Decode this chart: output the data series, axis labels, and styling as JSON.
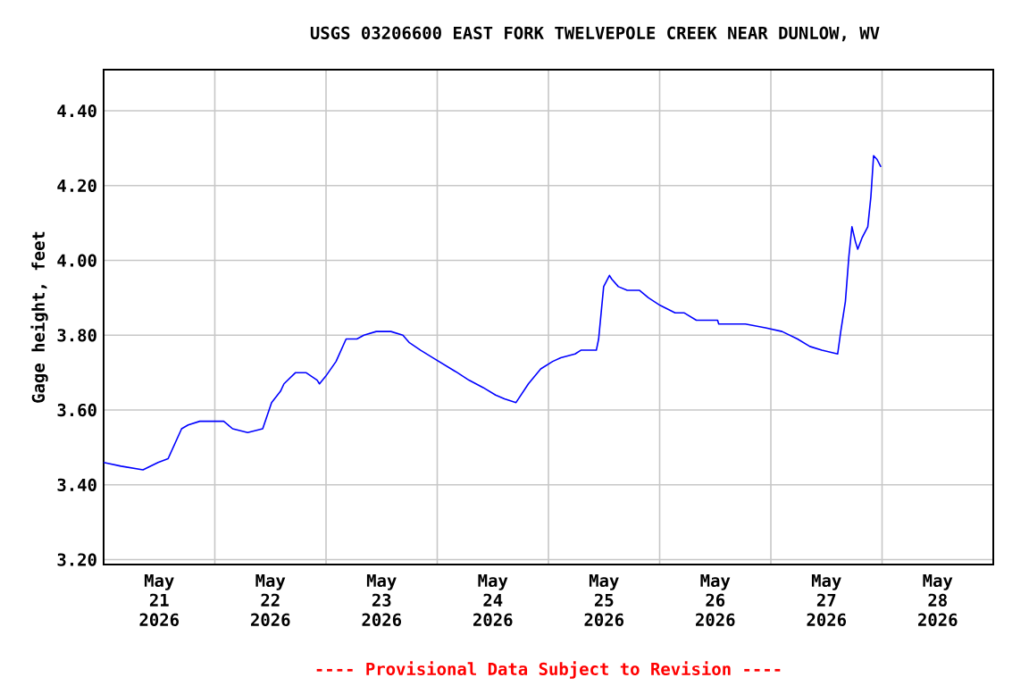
{
  "chart_data": {
    "type": "line",
    "title": "USGS 03206600 EAST FORK TWELVEPOLE CREEK NEAR DUNLOW, WV",
    "ylabel": "Gage height, feet",
    "annotations": [
      "---- Provisional Data Subject to Revision ----"
    ],
    "xlim": [
      "2026-05-21",
      "2026-05-29"
    ],
    "xticks": [
      {
        "value": "2026-05-21",
        "label": null
      },
      {
        "value": "2026-05-22",
        "label": null
      },
      {
        "value": "2026-05-23",
        "label": null
      },
      {
        "value": "2026-05-24",
        "label": null
      },
      {
        "value": "2026-05-25",
        "label": null
      },
      {
        "value": "2026-05-26",
        "label": null
      },
      {
        "value": "2026-05-27",
        "label": null
      },
      {
        "value": "2026-05-28",
        "label": null
      },
      {
        "value": "2026-05-29",
        "label": null
      },
      {
        "value": "2026-05-21T12:00",
        "label": "May 21 2026"
      },
      {
        "value": "2026-05-22T12:00",
        "label": "May 22 2026"
      },
      {
        "value": "2026-05-23T12:00",
        "label": "May 23 2026"
      },
      {
        "value": "2026-05-24T12:00",
        "label": "May 24 2026"
      },
      {
        "value": "2026-05-25T12:00",
        "label": "May 25 2026"
      },
      {
        "value": "2026-05-26T12:00",
        "label": "May 26 2026"
      },
      {
        "value": "2026-05-27T12:00",
        "label": "May 27 2026"
      },
      {
        "value": "2026-05-28T12:00",
        "label": "May 28 2026"
      }
    ],
    "ylim": [
      3.187,
      4.51
    ],
    "yticks": [
      {
        "value": 3.2,
        "label": "3.20"
      },
      {
        "value": 3.4,
        "label": "3.40"
      },
      {
        "value": 3.6,
        "label": "3.60"
      },
      {
        "value": 3.8,
        "label": "3.80"
      },
      {
        "value": 4.0,
        "label": "4.00"
      },
      {
        "value": 4.2,
        "label": "4.20"
      },
      {
        "value": 4.4,
        "label": "4.40"
      }
    ],
    "grid": true,
    "marker": "none",
    "line_style": "solid",
    "series": [
      {
        "color": "#0000ff",
        "x": [
          "2026-05-21T00:00",
          "2026-05-21T03:45",
          "2026-05-21T08:30",
          "2026-05-21T11:45",
          "2026-05-21T13:55",
          "2026-05-21T16:50",
          "2026-05-21T18:15",
          "2026-05-21T20:45",
          "2026-05-22T01:55",
          "2026-05-22T03:50",
          "2026-05-22T07:05",
          "2026-05-22T10:20",
          "2026-05-22T12:15",
          "2026-05-22T14:10",
          "2026-05-22T14:55",
          "2026-05-22T17:25",
          "2026-05-22T19:40",
          "2026-05-22T22:05",
          "2026-05-22T22:35",
          "2026-05-22T23:55",
          "2026-05-23T02:10",
          "2026-05-23T04:20",
          "2026-05-23T06:40",
          "2026-05-23T08:10",
          "2026-05-23T10:50",
          "2026-05-23T14:00",
          "2026-05-23T16:35",
          "2026-05-23T18:00",
          "2026-05-23T20:25",
          "2026-05-23T23:00",
          "2026-05-24T01:40",
          "2026-05-24T04:20",
          "2026-05-24T06:50",
          "2026-05-24T09:55",
          "2026-05-24T12:35",
          "2026-05-24T14:30",
          "2026-05-24T17:00",
          "2026-05-24T19:40",
          "2026-05-24T22:20",
          "2026-05-25T00:55",
          "2026-05-25T02:40",
          "2026-05-25T05:45",
          "2026-05-25T07:00",
          "2026-05-25T10:20",
          "2026-05-25T10:50",
          "2026-05-25T11:55",
          "2026-05-25T13:10",
          "2026-05-25T13:40",
          "2026-05-25T15:05",
          "2026-05-25T17:00",
          "2026-05-25T19:40",
          "2026-05-25T21:35",
          "2026-05-26T00:05",
          "2026-05-26T03:20",
          "2026-05-26T05:15",
          "2026-05-26T07:55",
          "2026-05-26T12:30",
          "2026-05-26T12:45",
          "2026-05-26T18:30",
          "2026-05-26T22:50",
          "2026-05-27T02:25",
          "2026-05-27T05:45",
          "2026-05-27T08:25",
          "2026-05-27T11:00",
          "2026-05-27T14:25",
          "2026-05-27T15:05",
          "2026-05-27T16:05",
          "2026-05-27T16:50",
          "2026-05-27T17:30",
          "2026-05-27T18:15",
          "2026-05-27T18:45",
          "2026-05-27T19:40",
          "2026-05-27T20:55",
          "2026-05-27T21:35",
          "2026-05-27T22:10",
          "2026-05-27T22:55",
          "2026-05-27T23:45"
        ],
        "values": [
          3.46,
          3.45,
          3.44,
          3.46,
          3.47,
          3.55,
          3.56,
          3.57,
          3.57,
          3.55,
          3.54,
          3.55,
          3.62,
          3.65,
          3.67,
          3.7,
          3.7,
          3.68,
          3.67,
          3.69,
          3.73,
          3.79,
          3.79,
          3.8,
          3.81,
          3.81,
          3.8,
          3.78,
          3.76,
          3.74,
          3.72,
          3.7,
          3.68,
          3.66,
          3.64,
          3.63,
          3.62,
          3.67,
          3.71,
          3.73,
          3.74,
          3.75,
          3.76,
          3.76,
          3.79,
          3.93,
          3.96,
          3.95,
          3.93,
          3.92,
          3.92,
          3.9,
          3.88,
          3.86,
          3.86,
          3.84,
          3.84,
          3.83,
          3.83,
          3.82,
          3.81,
          3.79,
          3.77,
          3.76,
          3.75,
          3.81,
          3.89,
          4.01,
          4.09,
          4.05,
          4.03,
          4.06,
          4.09,
          4.17,
          4.28,
          4.27,
          4.25
        ]
      }
    ]
  }
}
